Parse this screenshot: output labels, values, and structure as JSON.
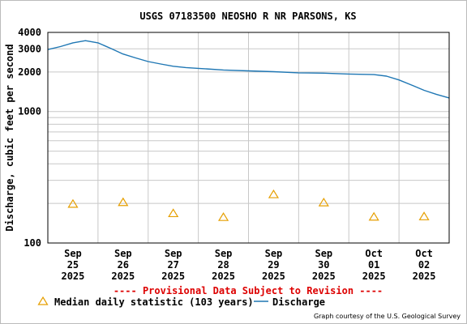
{
  "chart_data": {
    "type": "line",
    "title": "USGS 07183500 NEOSHO R NR PARSONS, KS",
    "ylabel": "Discharge, cubic feet per second",
    "xlabel": "",
    "yscale": "log",
    "ylim": [
      100,
      4000
    ],
    "y_tick_labels": [
      {
        "value": 100,
        "label": "100"
      },
      {
        "value": 1000,
        "label": "1000"
      },
      {
        "value": 2000,
        "label": "2000"
      },
      {
        "value": 3000,
        "label": "3000"
      },
      {
        "value": 4000,
        "label": "4000"
      }
    ],
    "y_grid_values": [
      200,
      300,
      400,
      500,
      600,
      700,
      800,
      900,
      1000,
      2000,
      3000
    ],
    "xlim": [
      "2025-09-24 12:00",
      "2025-10-02 12:00"
    ],
    "x_ticks": [
      {
        "date": "2025-09-25",
        "label": [
          "Sep",
          "25",
          "2025"
        ]
      },
      {
        "date": "2025-09-26",
        "label": [
          "Sep",
          "26",
          "2025"
        ]
      },
      {
        "date": "2025-09-27",
        "label": [
          "Sep",
          "27",
          "2025"
        ]
      },
      {
        "date": "2025-09-28",
        "label": [
          "Sep",
          "28",
          "2025"
        ]
      },
      {
        "date": "2025-09-29",
        "label": [
          "Sep",
          "29",
          "2025"
        ]
      },
      {
        "date": "2025-09-30",
        "label": [
          "Sep",
          "30",
          "2025"
        ]
      },
      {
        "date": "2025-10-01",
        "label": [
          "Oct",
          "01",
          "2025"
        ]
      },
      {
        "date": "2025-10-02",
        "label": [
          "Oct",
          "02",
          "2025"
        ]
      }
    ],
    "x_gridlines": [
      "2025-09-25 12:00",
      "2025-09-26 12:00",
      "2025-09-27 12:00",
      "2025-09-28 12:00",
      "2025-09-29 12:00",
      "2025-09-30 12:00",
      "2025-10-01 12:00"
    ],
    "grid": true,
    "series": [
      {
        "name": "Discharge",
        "type": "line",
        "color": "#1f77b4",
        "points": [
          {
            "x": "2025-09-24 12:00",
            "y": 2960
          },
          {
            "x": "2025-09-24 18:00",
            "y": 3120
          },
          {
            "x": "2025-09-25 00:00",
            "y": 3330
          },
          {
            "x": "2025-09-25 06:00",
            "y": 3460
          },
          {
            "x": "2025-09-25 12:00",
            "y": 3330
          },
          {
            "x": "2025-09-25 18:00",
            "y": 3030
          },
          {
            "x": "2025-09-26 00:00",
            "y": 2740
          },
          {
            "x": "2025-09-26 06:00",
            "y": 2560
          },
          {
            "x": "2025-09-26 12:00",
            "y": 2400
          },
          {
            "x": "2025-09-26 18:00",
            "y": 2300
          },
          {
            "x": "2025-09-27 00:00",
            "y": 2210
          },
          {
            "x": "2025-09-27 06:00",
            "y": 2160
          },
          {
            "x": "2025-09-27 12:00",
            "y": 2130
          },
          {
            "x": "2025-09-28 00:00",
            "y": 2070
          },
          {
            "x": "2025-09-28 12:00",
            "y": 2040
          },
          {
            "x": "2025-09-29 00:00",
            "y": 2010
          },
          {
            "x": "2025-09-29 12:00",
            "y": 1970
          },
          {
            "x": "2025-09-30 00:00",
            "y": 1960
          },
          {
            "x": "2025-09-30 12:00",
            "y": 1930
          },
          {
            "x": "2025-10-01 00:00",
            "y": 1910
          },
          {
            "x": "2025-10-01 06:00",
            "y": 1860
          },
          {
            "x": "2025-10-01 12:00",
            "y": 1740
          },
          {
            "x": "2025-10-01 18:00",
            "y": 1590
          },
          {
            "x": "2025-10-02 00:00",
            "y": 1450
          },
          {
            "x": "2025-10-02 06:00",
            "y": 1350
          },
          {
            "x": "2025-10-02 12:00",
            "y": 1270
          }
        ]
      },
      {
        "name": "Median daily statistic (103 years)",
        "type": "marker",
        "marker": "triangle",
        "color": "#e69f00",
        "points": [
          {
            "x": "2025-09-25",
            "y": 198
          },
          {
            "x": "2025-09-26",
            "y": 204
          },
          {
            "x": "2025-09-27",
            "y": 168
          },
          {
            "x": "2025-09-28",
            "y": 157
          },
          {
            "x": "2025-09-29",
            "y": 234
          },
          {
            "x": "2025-09-30",
            "y": 203
          },
          {
            "x": "2025-10-01",
            "y": 158
          },
          {
            "x": "2025-10-02",
            "y": 159
          }
        ]
      }
    ],
    "legend": {
      "placement": "bottom",
      "items": [
        {
          "label": "Median daily statistic (103 years)",
          "symbol": "triangle",
          "color": "#e69f00"
        },
        {
          "label": "Discharge",
          "symbol": "line",
          "color": "#1f77b4"
        }
      ]
    },
    "annotations": {
      "provisional": "---- Provisional Data Subject to Revision ----",
      "provisional_color": "#dd0000",
      "credit": "Graph courtesy of the U.S. Geological Survey"
    }
  }
}
